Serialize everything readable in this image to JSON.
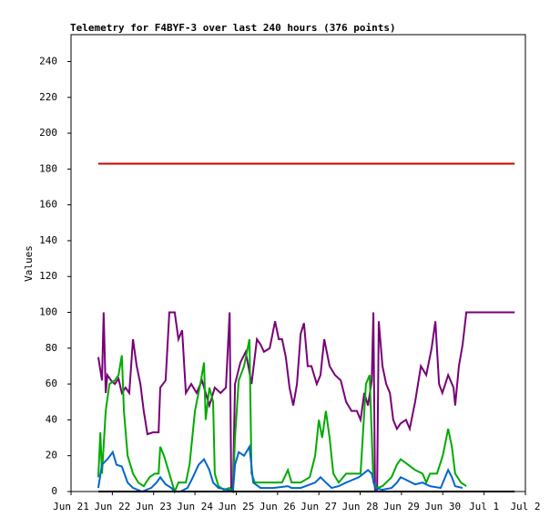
{
  "chart_data": {
    "type": "line",
    "title": "Telemetry for F4BYF-3 over last 240 hours (376 points)",
    "ylabel": "Values",
    "xlim": [
      0,
      11
    ],
    "xticks": [
      {
        "value": 0,
        "label": "Jun 21"
      },
      {
        "value": 1,
        "label": "Jun 22"
      },
      {
        "value": 2,
        "label": "Jun 23"
      },
      {
        "value": 3,
        "label": "Jun 24"
      },
      {
        "value": 4,
        "label": "Jun 25"
      },
      {
        "value": 5,
        "label": "Jun 26"
      },
      {
        "value": 6,
        "label": "Jun 27"
      },
      {
        "value": 7,
        "label": "Jun 28"
      },
      {
        "value": 8,
        "label": "Jun 29"
      },
      {
        "value": 9,
        "label": "Jun 30"
      },
      {
        "value": 10,
        "label": "Jul 1"
      },
      {
        "value": 11,
        "label": "Jul 2"
      }
    ],
    "ylim": [
      0,
      255
    ],
    "yticks": [
      0,
      20,
      40,
      60,
      80,
      100,
      120,
      140,
      160,
      180,
      200,
      220,
      240
    ],
    "series": [
      {
        "color": "#cc0000",
        "x": [
          0.66,
          10.74
        ],
        "values": [
          183,
          183
        ]
      },
      {
        "color": "#770077",
        "x": [
          0.66,
          0.75,
          0.79,
          0.84,
          0.88,
          0.97,
          1.06,
          1.15,
          1.23,
          1.32,
          1.41,
          1.5,
          1.59,
          1.68,
          1.76,
          1.85,
          1.98,
          2.12,
          2.16,
          2.29,
          2.38,
          2.51,
          2.6,
          2.69,
          2.78,
          2.91,
          3.04,
          3.17,
          3.26,
          3.35,
          3.48,
          3.62,
          3.75,
          3.84,
          3.88,
          3.92,
          3.97,
          4.1,
          4.23,
          4.37,
          4.5,
          4.59,
          4.67,
          4.81,
          4.94,
          5.03,
          5.11,
          5.2,
          5.29,
          5.38,
          5.47,
          5.56,
          5.64,
          5.73,
          5.82,
          5.95,
          6.04,
          6.13,
          6.26,
          6.39,
          6.53,
          6.66,
          6.79,
          6.92,
          7.01,
          7.1,
          7.19,
          7.28,
          7.32,
          7.36,
          7.41,
          7.45,
          7.54,
          7.63,
          7.72,
          7.8,
          7.89,
          7.98,
          8.11,
          8.2,
          8.33,
          8.47,
          8.6,
          8.73,
          8.82,
          8.91,
          8.99,
          9.13,
          9.26,
          9.3,
          9.39,
          9.48,
          9.57,
          10.74
        ],
        "values": [
          75,
          62,
          100,
          55,
          65,
          62,
          60,
          63,
          55,
          58,
          55,
          85,
          70,
          60,
          45,
          32,
          33,
          33,
          58,
          62,
          100,
          100,
          85,
          90,
          55,
          60,
          55,
          62,
          55,
          48,
          58,
          55,
          58,
          100,
          0,
          0,
          60,
          72,
          78,
          60,
          85,
          82,
          78,
          80,
          95,
          85,
          85,
          75,
          58,
          48,
          60,
          88,
          94,
          70,
          70,
          60,
          65,
          85,
          70,
          65,
          62,
          50,
          45,
          45,
          40,
          55,
          48,
          62,
          100,
          0,
          0,
          95,
          70,
          60,
          55,
          40,
          35,
          38,
          40,
          35,
          50,
          70,
          65,
          80,
          95,
          60,
          55,
          65,
          58,
          48,
          70,
          82,
          100,
          100
        ]
      },
      {
        "color": "#00aa00",
        "x": [
          0.66,
          0.71,
          0.75,
          0.84,
          0.93,
          1.06,
          1.15,
          1.23,
          1.28,
          1.37,
          1.5,
          1.63,
          1.76,
          1.9,
          2.03,
          2.12,
          2.16,
          2.25,
          2.38,
          2.47,
          2.51,
          2.6,
          2.78,
          2.87,
          3.0,
          3.13,
          3.22,
          3.26,
          3.35,
          3.44,
          3.48,
          3.57,
          3.7,
          3.84,
          3.92,
          3.97,
          4.06,
          4.19,
          4.32,
          4.37,
          4.45,
          4.67,
          4.89,
          5.11,
          5.25,
          5.34,
          5.56,
          5.78,
          5.91,
          6.0,
          6.08,
          6.17,
          6.26,
          6.35,
          6.48,
          6.66,
          6.88,
          7.01,
          7.14,
          7.23,
          7.32,
          7.41,
          7.54,
          7.76,
          7.89,
          7.98,
          8.16,
          8.33,
          8.51,
          8.6,
          8.69,
          8.86,
          9.0,
          9.13,
          9.22,
          9.3,
          9.44,
          9.57
        ],
        "values": [
          8,
          33,
          10,
          45,
          60,
          62,
          65,
          76,
          45,
          20,
          10,
          5,
          3,
          8,
          10,
          10,
          25,
          20,
          10,
          3,
          0,
          5,
          5,
          15,
          45,
          60,
          72,
          40,
          58,
          50,
          10,
          3,
          1,
          2,
          0,
          30,
          62,
          70,
          85,
          10,
          5,
          5,
          5,
          5,
          12,
          5,
          5,
          8,
          20,
          40,
          30,
          45,
          30,
          10,
          5,
          10,
          10,
          10,
          60,
          65,
          5,
          2,
          3,
          8,
          15,
          18,
          15,
          12,
          10,
          5,
          10,
          10,
          20,
          35,
          25,
          10,
          5,
          3
        ]
      },
      {
        "color": "#0066cc",
        "x": [
          0.66,
          0.75,
          0.88,
          1.01,
          1.1,
          1.23,
          1.37,
          1.5,
          1.72,
          1.94,
          2.07,
          2.16,
          2.29,
          2.43,
          2.51,
          2.65,
          2.82,
          2.95,
          3.09,
          3.22,
          3.35,
          3.44,
          3.57,
          3.79,
          3.92,
          3.97,
          4.06,
          4.19,
          4.32,
          4.41,
          4.59,
          4.89,
          5.25,
          5.34,
          5.56,
          5.91,
          6.04,
          6.17,
          6.31,
          6.48,
          6.66,
          6.97,
          7.19,
          7.28,
          7.36,
          7.54,
          7.76,
          7.89,
          7.98,
          8.16,
          8.33,
          8.51,
          8.69,
          8.95,
          9.13,
          9.22,
          9.3,
          9.48
        ],
        "values": [
          2,
          15,
          18,
          22,
          15,
          14,
          5,
          2,
          0,
          2,
          5,
          8,
          4,
          2,
          0,
          0,
          2,
          8,
          15,
          18,
          12,
          5,
          2,
          1,
          0,
          15,
          22,
          20,
          25,
          5,
          2,
          2,
          3,
          2,
          2,
          5,
          8,
          5,
          2,
          3,
          5,
          8,
          12,
          10,
          2,
          1,
          2,
          5,
          8,
          6,
          4,
          5,
          3,
          2,
          12,
          8,
          3,
          2
        ]
      },
      {
        "color": "#000000",
        "x": [
          0.66,
          10.74
        ],
        "values": [
          0,
          0
        ]
      }
    ]
  }
}
